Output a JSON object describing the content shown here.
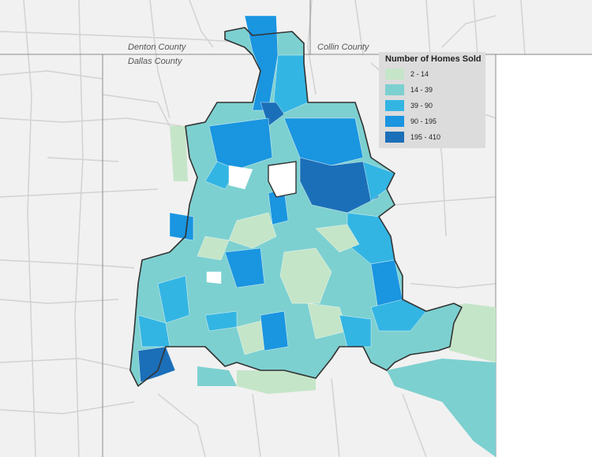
{
  "counties": {
    "denton": "Denton County",
    "collin": "Collin County",
    "dallas": "Dallas County"
  },
  "legend": {
    "title": "Number of Homes Sold",
    "classes": [
      {
        "label": "2 - 14",
        "color": "#c5e5c8"
      },
      {
        "label": "14 - 39",
        "color": "#7dd0d0"
      },
      {
        "label": "39 - 90",
        "color": "#33b5e3"
      },
      {
        "label": "90 - 195",
        "color": "#1a95e0"
      },
      {
        "label": "195 - 410",
        "color": "#1b6fb8"
      }
    ]
  },
  "colors": {
    "background": "#f1f1f1",
    "road": "#cfcfcf",
    "county_line": "#8a8a8a",
    "city_boundary": "#333333"
  }
}
